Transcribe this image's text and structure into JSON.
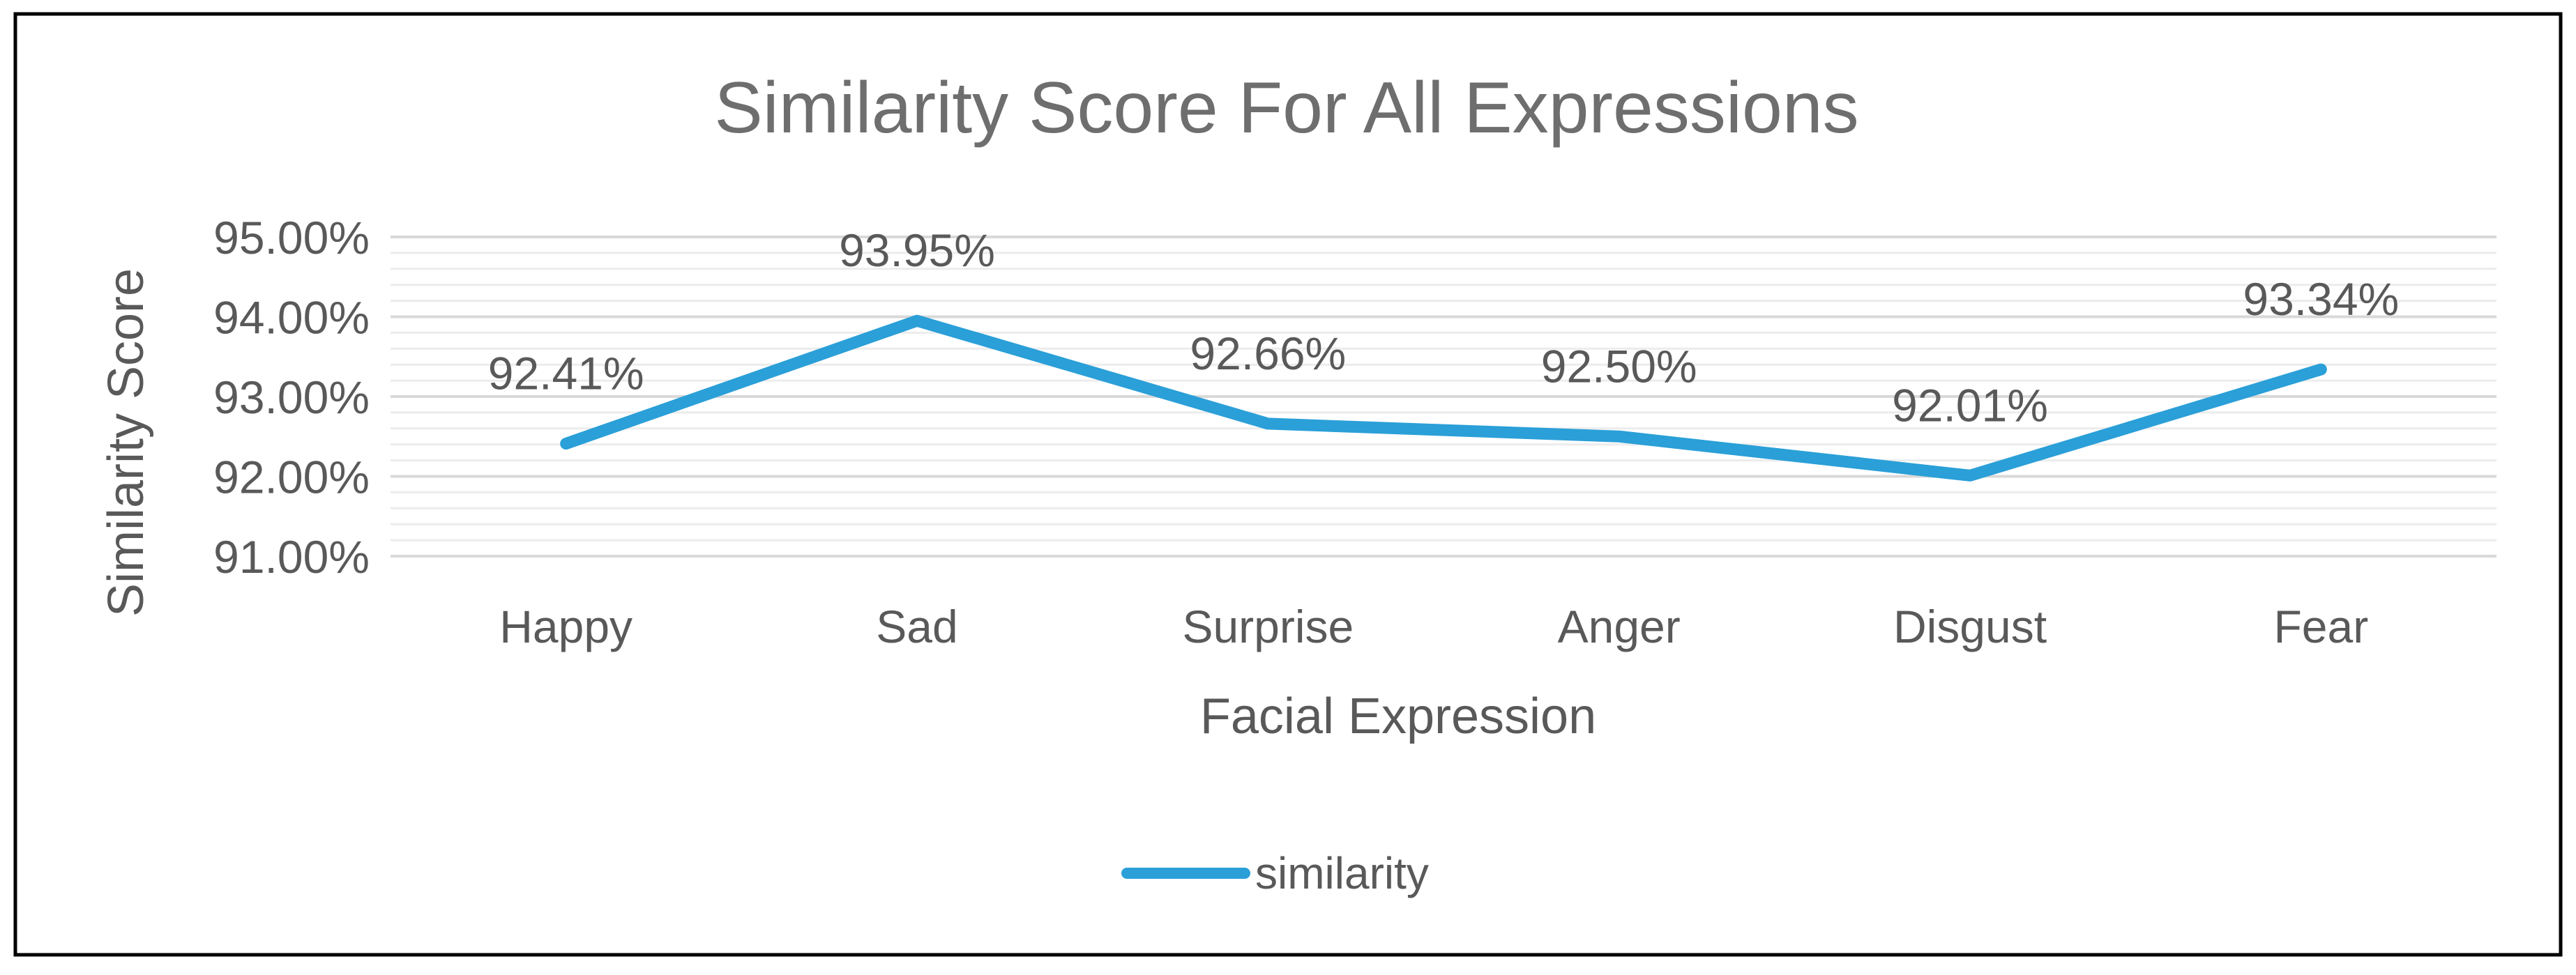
{
  "chart_data": {
    "type": "line",
    "title": "Similarity Score For All Expressions",
    "xlabel": "Facial Expression",
    "ylabel": "Similarity Score",
    "categories": [
      "Happy",
      "Sad",
      "Surprise",
      "Anger",
      "Disgust",
      "Fear"
    ],
    "series": [
      {
        "name": "similarity",
        "values": [
          92.41,
          93.95,
          92.66,
          92.5,
          92.01,
          93.34
        ],
        "data_labels": [
          "92.41%",
          "93.95%",
          "92.66%",
          "92.50%",
          "92.01%",
          "93.34%"
        ],
        "color": "#2A9FD8"
      }
    ],
    "ylim": [
      91,
      95
    ],
    "yticks": [
      95,
      94,
      93,
      92,
      91
    ],
    "ytick_labels": [
      "95.00%",
      "94.00%",
      "93.00%",
      "92.00%",
      "91.00%"
    ],
    "grid": true,
    "legend_position": "bottom"
  },
  "colors": {
    "text": "#595959",
    "title": "#6E6E6E",
    "major_grid": "#D9D9D9",
    "minor_grid": "#ECECEC",
    "border": "#000000"
  }
}
